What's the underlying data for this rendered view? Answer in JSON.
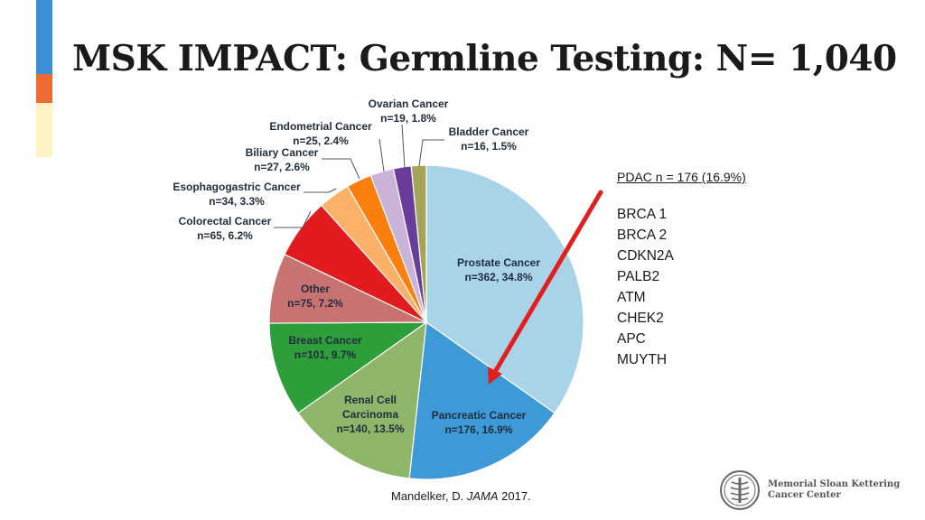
{
  "title": "MSK IMPACT: Germline Testing: N= 1,040",
  "side_panel": {
    "pdac_label": "PDAC n = 176 (16.9%)",
    "genes": [
      "BRCA 1",
      "BRCA 2",
      "CDKN2A",
      "PALB2",
      "ATM",
      "CHEK2",
      "APC",
      "MUYTH"
    ]
  },
  "citation": {
    "author": "Mandelker, D.",
    "journal": "JAMA",
    "year": "2017."
  },
  "logo": {
    "line1": "Memorial Sloan Kettering",
    "line2": "Cancer Center"
  },
  "colors": {
    "accent_blue": "#3b8fd6",
    "accent_orange": "#ef6b2f",
    "accent_cream": "#fdf3c4",
    "arrow_red": "#e02020"
  },
  "chart_data": {
    "type": "pie",
    "title": "",
    "slices": [
      {
        "label": "Prostate Cancer",
        "value_text": "n=362, 34.8%",
        "value": 362,
        "percent": 34.8,
        "color": "#a9d3e7"
      },
      {
        "label": "Pancreatic Cancer",
        "value_text": "n=176, 16.9%",
        "value": 176,
        "percent": 16.9,
        "color": "#3d9ad7"
      },
      {
        "label": "Renal Cell Carcinoma",
        "value_text": "n=140, 13.5%",
        "value": 140,
        "percent": 13.5,
        "color": "#8fb56b"
      },
      {
        "label": "Breast Cancer",
        "value_text": "n=101, 9.7%",
        "value": 101,
        "percent": 9.7,
        "color": "#2e9e3a"
      },
      {
        "label": "Other",
        "value_text": "n=75, 7.2%",
        "value": 75,
        "percent": 7.2,
        "color": "#c87272"
      },
      {
        "label": "Colorectal Cancer",
        "value_text": "n=65, 6.2%",
        "value": 65,
        "percent": 6.2,
        "color": "#e21b1f"
      },
      {
        "label": "Esophagogastric Cancer",
        "value_text": "n=34, 3.3%",
        "value": 34,
        "percent": 3.3,
        "color": "#fbb268"
      },
      {
        "label": "Biliary Cancer",
        "value_text": "n=27, 2.6%",
        "value": 27,
        "percent": 2.6,
        "color": "#fb7f0f"
      },
      {
        "label": "Endometrial Cancer",
        "value_text": "n=25, 2.4%",
        "value": 25,
        "percent": 2.4,
        "color": "#c9b3d9"
      },
      {
        "label": "Ovarian Cancer",
        "value_text": "n=19, 1.8%",
        "value": 19,
        "percent": 1.8,
        "color": "#6a3c9a"
      },
      {
        "label": "Bladder Cancer",
        "value_text": "n=16, 1.5%",
        "value": 16,
        "percent": 1.5,
        "color": "#a5a55a"
      }
    ]
  }
}
